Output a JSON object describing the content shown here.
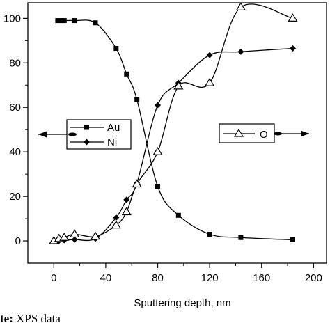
{
  "caption": {
    "prefix": "te:",
    "text": "XPS data"
  },
  "chart_data": {
    "type": "line",
    "xlabel": "Sputtering depth, nm",
    "ylabel": "",
    "xlim": [
      -20,
      210
    ],
    "ylim": [
      -10,
      107
    ],
    "xticks": [
      0,
      40,
      80,
      120,
      160,
      200
    ],
    "yticks": [
      0,
      20,
      40,
      60,
      80,
      100
    ],
    "grid": false,
    "series": [
      {
        "name": "Au",
        "marker": "square",
        "x": [
          3,
          6,
          8,
          16,
          32,
          48,
          56,
          64,
          80,
          96,
          120,
          144,
          184
        ],
        "y": [
          99,
          99,
          99,
          99,
          98,
          86.5,
          75,
          63.5,
          24.5,
          11.5,
          3,
          1.5,
          0.5
        ]
      },
      {
        "name": "Ni",
        "marker": "diamond",
        "x": [
          0,
          4,
          8,
          16,
          32,
          48,
          56,
          64,
          80,
          96,
          120,
          144,
          184
        ],
        "y": [
          0,
          0,
          0.3,
          0.6,
          1,
          10.5,
          18.5,
          26,
          61,
          71,
          83.5,
          85,
          86.5
        ]
      },
      {
        "name": "O",
        "marker": "triangle-open",
        "x": [
          0,
          4,
          8,
          16,
          32,
          48,
          56,
          64,
          80,
          96,
          120,
          144,
          184
        ],
        "y": [
          0,
          1,
          1.5,
          3,
          2,
          7,
          13,
          25.5,
          40,
          69.5,
          71,
          105,
          100
        ]
      }
    ],
    "legends": [
      {
        "entries": [
          "Au",
          "Ni"
        ],
        "placement": "left",
        "arrow": "left"
      },
      {
        "entries": [
          "O"
        ],
        "placement": "right",
        "arrow": "right"
      }
    ]
  }
}
